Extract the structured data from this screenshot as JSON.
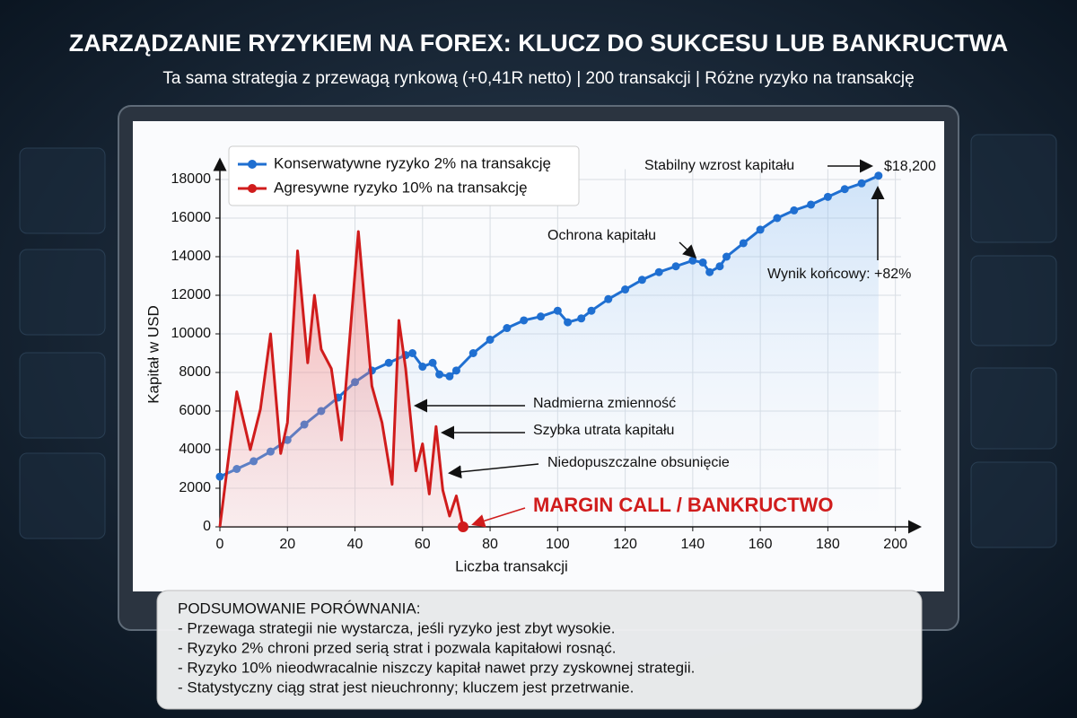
{
  "chart_data": {
    "type": "line",
    "title": "ZARZĄDZANIE RYZYKIEM NA FOREX: KLUCZ DO SUKCESU LUB BANKRUCTWA",
    "subtitle": "Ta sama strategia z przewagą rynkową (+0,41R netto) | 200 transakcji | Różne ryzyko na transakcję",
    "x_label": "Liczba transakcji",
    "y_label": "Kapitał w USD",
    "xlim": [
      0,
      207
    ],
    "ylim": [
      0,
      19000
    ],
    "xticks": [
      0,
      20,
      40,
      60,
      80,
      100,
      120,
      140,
      160,
      180,
      200
    ],
    "yticks": [
      0,
      2000,
      4000,
      6000,
      8000,
      10000,
      12000,
      14000,
      16000,
      18000
    ],
    "grid": true,
    "series": [
      {
        "name": "Konserwatywne ryzyko 2% na transakcję",
        "color": "#1f6fd1",
        "x": [
          0,
          5,
          10,
          15,
          20,
          25,
          30,
          35,
          40,
          45,
          50,
          55,
          57,
          60,
          63,
          65,
          68,
          70,
          75,
          80,
          85,
          90,
          95,
          100,
          103,
          107,
          110,
          115,
          120,
          125,
          130,
          135,
          140,
          143,
          145,
          148,
          150,
          155,
          160,
          165,
          170,
          175,
          180,
          185,
          190,
          195
        ],
        "values": [
          2600,
          3000,
          3400,
          3900,
          4500,
          5300,
          6000,
          6700,
          7500,
          8100,
          8500,
          8900,
          9000,
          8300,
          8500,
          7900,
          7800,
          8100,
          9000,
          9700,
          10300,
          10700,
          10900,
          11200,
          10600,
          10800,
          11200,
          11800,
          12300,
          12800,
          13200,
          13500,
          13800,
          13700,
          13200,
          13500,
          14000,
          14700,
          15400,
          16000,
          16400,
          16700,
          17100,
          17500,
          17800,
          18200
        ]
      },
      {
        "name": "Agresywne ryzyko 10% na transakcję",
        "color": "#d01c1c",
        "x": [
          0,
          5,
          9,
          12,
          15,
          18,
          20,
          23,
          26,
          28,
          30,
          33,
          36,
          41,
          45,
          48,
          51,
          53,
          55,
          58,
          60,
          62,
          64,
          66,
          68,
          70,
          72
        ],
        "values": [
          0,
          7000,
          4000,
          6100,
          10000,
          3800,
          5400,
          14300,
          8500,
          12000,
          9200,
          8200,
          4500,
          15300,
          7300,
          5400,
          2200,
          10700,
          8200,
          2900,
          4300,
          1700,
          5200,
          1900,
          560,
          1600,
          0
        ]
      }
    ],
    "annotations": [
      "Stabilny wzrost kapitału",
      "$18,200",
      "Ochrona kapitału",
      "Wynik końcowy: +82%",
      "Nadmierna zmienność",
      "Szybka utrata kapitału",
      "Niedopuszczalne obsunięcie",
      "MARGIN CALL / BANKRUCTWO"
    ]
  },
  "summary": {
    "heading": "PODSUMOWANIE PORÓWNANIA:",
    "lines": [
      "- Przewaga strategii nie wystarcza, jeśli ryzyko jest zbyt wysokie.",
      "- Ryzyko 2% chroni przed serią strat i pozwala kapitałowi rosnąć.",
      "- Ryzyko 10% nieodwracalnie niszczy kapitał nawet przy zyskownej strategii.",
      "- Statystyczny ciąg strat jest nieuchronny; kluczem jest przetrwanie."
    ]
  }
}
